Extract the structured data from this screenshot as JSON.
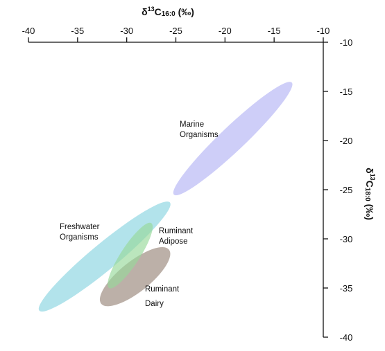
{
  "chart_data": {
    "type": "scatter",
    "title": "",
    "x_axis": {
      "position": "top",
      "label_main": "δ",
      "label_sup": "13",
      "label_c": "C",
      "label_sub": "16:0",
      "label_unit": " (‰)",
      "range": [
        -40,
        -10
      ],
      "ticks": [
        -40,
        -35,
        -30,
        -25,
        -20,
        -15,
        -10
      ],
      "tick_labels": [
        "-40",
        "-35",
        "-30",
        "-25",
        "-20",
        "-15",
        "-10"
      ]
    },
    "y_axis": {
      "position": "right",
      "label_main": "δ",
      "label_sup": "13",
      "label_c": "C",
      "label_sub": "18:0",
      "label_unit": " (‰)",
      "range": [
        -10,
        -40
      ],
      "ticks": [
        -10,
        -15,
        -20,
        -25,
        -30,
        -35,
        -40
      ],
      "tick_labels": [
        "-10",
        "-15",
        "-20",
        "-25",
        "-30",
        "-35",
        "-40"
      ]
    },
    "grid": false,
    "legend": "none",
    "regions": [
      {
        "key": "freshwater",
        "label_lines": [
          "Freshwater",
          "Organisms"
        ],
        "color": "#7fd0de",
        "opacity": 0.6,
        "center": [
          -32.2,
          -31.8
        ],
        "axis_end1": [
          -38.9,
          -37.3
        ],
        "axis_end2": [
          -25.6,
          -26.3
        ],
        "minor_half_width": 1.35
      },
      {
        "key": "marine",
        "label_lines": [
          "Marine",
          "Organisms"
        ],
        "color": "#b3b3f5",
        "opacity": 0.65,
        "center": [
          -19.2,
          -19.8
        ],
        "axis_end1": [
          -25.2,
          -25.5
        ],
        "axis_end2": [
          -13.2,
          -14.1
        ],
        "minor_half_width": 1.25
      },
      {
        "key": "ruminant_dairy",
        "label_lines": [
          "Ruminant",
          "Dairy"
        ],
        "color": "#a08f83",
        "opacity": 0.7,
        "center": [
          -29.2,
          -33.9
        ],
        "axis_end1": [
          -32.6,
          -36.6
        ],
        "axis_end2": [
          -25.7,
          -31.1
        ],
        "minor_half_width": 1.55
      },
      {
        "key": "ruminant_adipose",
        "label_lines": [
          "Ruminant",
          "Adipose"
        ],
        "color": "#96d89a",
        "opacity": 0.65,
        "center": [
          -29.7,
          -31.7
        ],
        "axis_end1": [
          -31.8,
          -35.0
        ],
        "axis_end2": [
          -27.5,
          -28.4
        ],
        "minor_half_width": 0.95
      }
    ]
  }
}
